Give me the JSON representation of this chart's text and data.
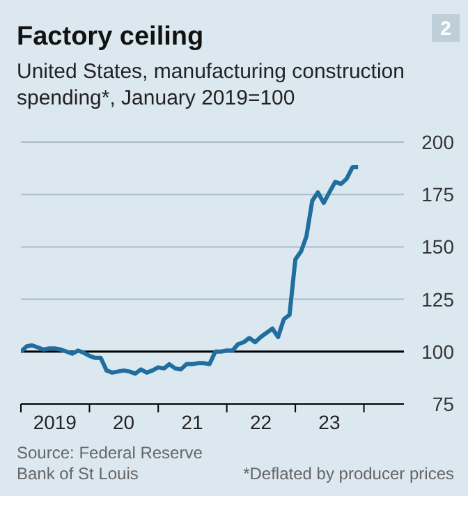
{
  "chart_data": {
    "type": "line",
    "title": "Factory ceiling",
    "subtitle": "United States, manufacturing construction spending*, January 2019=100",
    "annotations": [
      "2",
      "Source: Federal Reserve Bank of St Louis",
      "*Deflated by producer prices"
    ],
    "x": [
      "2019-01",
      "2019-02",
      "2019-03",
      "2019-04",
      "2019-05",
      "2019-06",
      "2019-07",
      "2019-08",
      "2019-09",
      "2019-10",
      "2019-11",
      "2019-12",
      "2020-01",
      "2020-02",
      "2020-03",
      "2020-04",
      "2020-05",
      "2020-06",
      "2020-07",
      "2020-08",
      "2020-09",
      "2020-10",
      "2020-11",
      "2020-12",
      "2021-01",
      "2021-02",
      "2021-03",
      "2021-04",
      "2021-05",
      "2021-06",
      "2021-07",
      "2021-08",
      "2021-09",
      "2021-10",
      "2021-11",
      "2021-12",
      "2022-01",
      "2022-02",
      "2022-03",
      "2022-04",
      "2022-05",
      "2022-06",
      "2022-07",
      "2022-08",
      "2022-09",
      "2022-10",
      "2022-11",
      "2022-12",
      "2023-01",
      "2023-02",
      "2023-03",
      "2023-04",
      "2023-05",
      "2023-06",
      "2023-07",
      "2023-08",
      "2023-09",
      "2023-10",
      "2023-11",
      "2023-12"
    ],
    "series": [
      {
        "color": "#1f6e9e",
        "values": [
          100,
          102.5,
          103,
          102,
          101,
          101.5,
          101.5,
          101,
          100,
          99,
          100.5,
          99.5,
          98,
          97,
          97,
          91,
          90,
          90.5,
          91,
          90.5,
          89.5,
          91.5,
          90,
          91,
          92.5,
          92,
          94,
          92,
          91.5,
          94,
          94,
          94.5,
          94.5,
          94,
          100,
          100,
          100.5,
          100.5,
          103.5,
          104.5,
          106.5,
          104.5,
          107,
          109,
          111,
          107,
          115.5,
          117.5,
          144,
          148,
          155,
          172,
          176,
          171,
          176,
          181,
          180,
          182.5,
          188,
          188
        ]
      }
    ],
    "xlim": [
      "2019-01",
      "2024-08"
    ],
    "xticks": [
      {
        "value": "2019-01",
        "label": null
      },
      {
        "value": "2019-07",
        "label": "2019"
      },
      {
        "value": "2020-01",
        "label": null
      },
      {
        "value": "2020-07",
        "label": "20"
      },
      {
        "value": "2021-01",
        "label": null
      },
      {
        "value": "2021-07",
        "label": "21"
      },
      {
        "value": "2022-01",
        "label": null
      },
      {
        "value": "2022-07",
        "label": "22"
      },
      {
        "value": "2023-01",
        "label": null
      },
      {
        "value": "2023-07",
        "label": "23"
      },
      {
        "value": "2024-01",
        "label": null
      }
    ],
    "ylim": [
      75,
      200
    ],
    "yticks": [
      75,
      100,
      125,
      150,
      175,
      200
    ],
    "grid": "y",
    "ref_lines": [
      {
        "axis": "y",
        "value": 100,
        "color": "#000000"
      }
    ]
  }
}
